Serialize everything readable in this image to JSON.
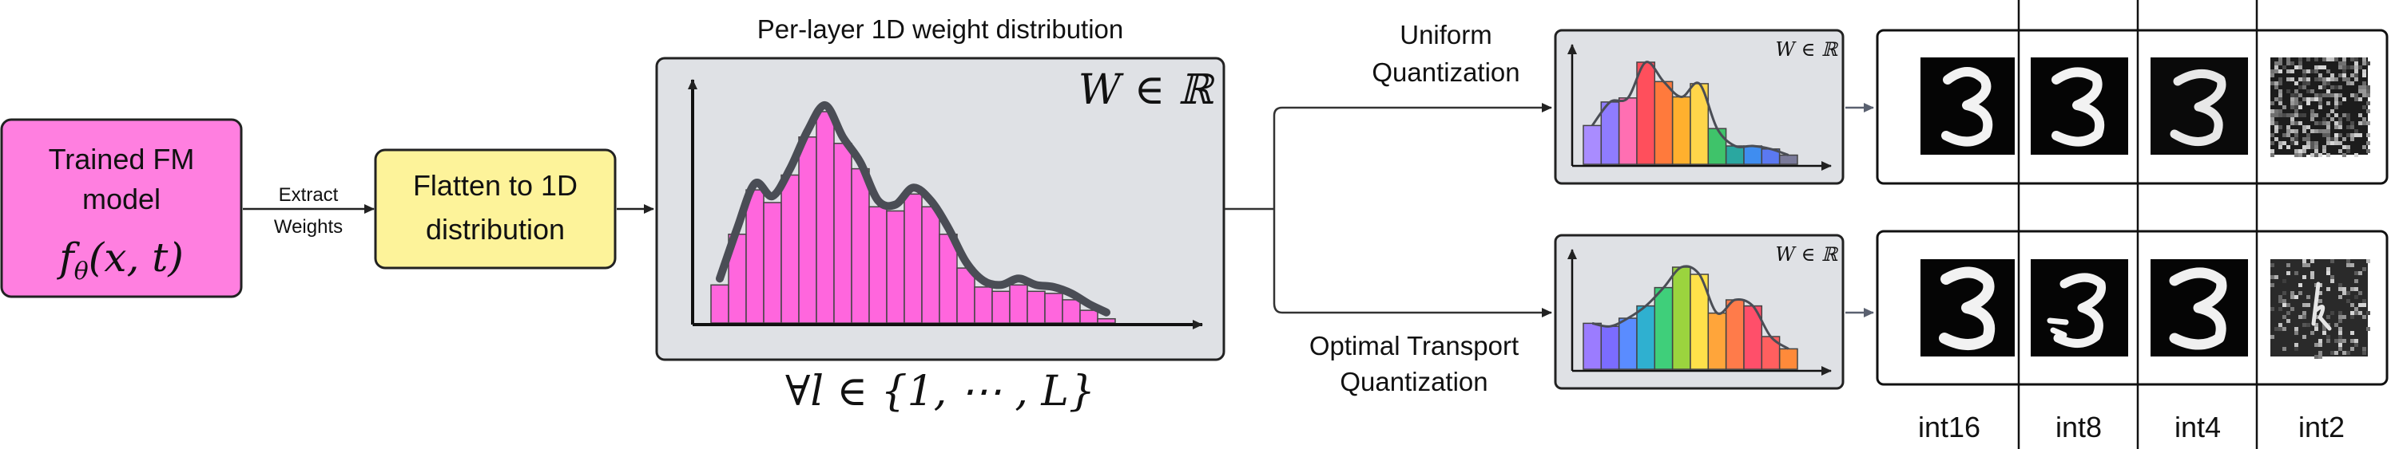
{
  "trained_box": {
    "line1": "Trained FM",
    "line2": "model",
    "formula_f": "f",
    "formula_theta": "θ",
    "formula_args": "(x, t)",
    "color": "#ff7fe0"
  },
  "extract_label": {
    "line1": "Extract",
    "line2": "Weights"
  },
  "flatten_box": {
    "line1": "Flatten to 1D",
    "line2": "distribution",
    "color": "#fdf39a"
  },
  "main_panel": {
    "title": "Per-layer 1D weight distribution",
    "weight_symbol": "W ∈ ℝ",
    "footer": "∀l ∈ {1, ⋯ , L}",
    "bar_color": "#ff66dd",
    "histogram": [
      0.18,
      0.42,
      0.63,
      0.57,
      0.7,
      0.88,
      1.0,
      0.85,
      0.73,
      0.55,
      0.53,
      0.61,
      0.55,
      0.42,
      0.26,
      0.17,
      0.15,
      0.18,
      0.15,
      0.14,
      0.11,
      0.06,
      0.02
    ]
  },
  "uniform": {
    "label_line1": "Uniform",
    "label_line2": "Quantization",
    "weight_symbol": "W ∈ ℝ",
    "bars": [
      0.38,
      0.61,
      0.65,
      1.0,
      0.81,
      0.66,
      0.79,
      0.35,
      0.18,
      0.18,
      0.15,
      0.09
    ],
    "colors": [
      "#a98cff",
      "#8f7cff",
      "#ff6fb2",
      "#ff4f5c",
      "#ff7a3c",
      "#ffb02e",
      "#ffd54a",
      "#3fc36a",
      "#2aa7a0",
      "#3f8df0",
      "#5b79f2",
      "#7a7a9a"
    ]
  },
  "ot": {
    "label_line1": "Optimal Transport",
    "label_line2": "Quantization",
    "weight_symbol": "W ∈ ℝ",
    "bars": [
      0.45,
      0.42,
      0.5,
      0.62,
      0.8,
      1.0,
      0.93,
      0.55,
      0.68,
      0.62,
      0.32,
      0.2
    ],
    "colors": [
      "#9b7cff",
      "#7b6cff",
      "#5a8cff",
      "#2fb0d0",
      "#3fcf7a",
      "#9bd43e",
      "#ffe14a",
      "#ffa53a",
      "#ff7b4a",
      "#ff4f6a",
      "#ff5f5f",
      "#ff8a3a"
    ]
  },
  "columns": [
    "int16",
    "int8",
    "int4",
    "int2"
  ]
}
